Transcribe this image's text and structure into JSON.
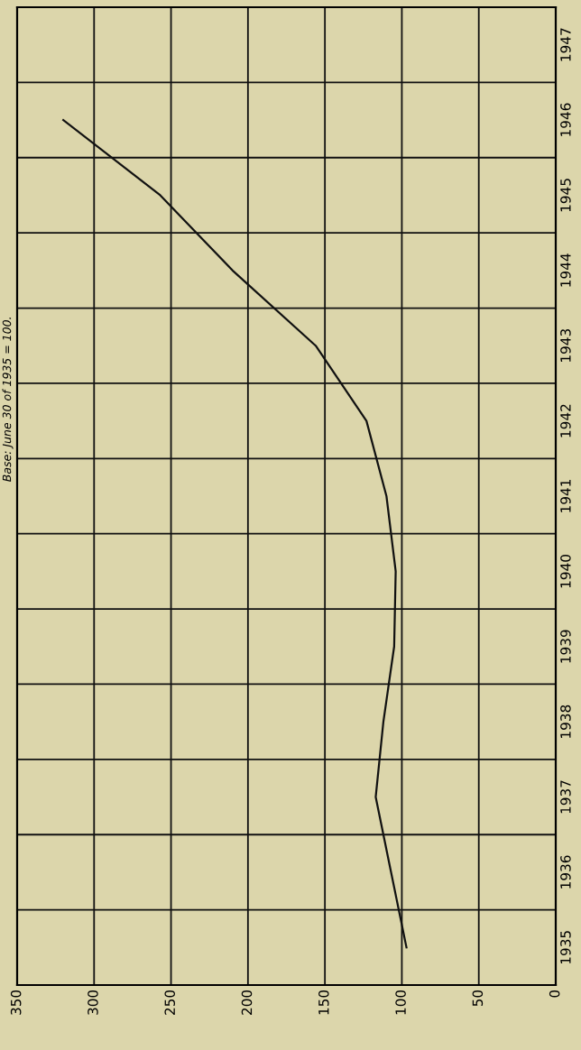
{
  "chart_data": {
    "type": "line",
    "orientation": "horizontal",
    "categories": [
      "1947",
      "1946",
      "1945",
      "1944",
      "1943",
      "1942",
      "1941",
      "1940",
      "1939",
      "1938",
      "1937",
      "1936",
      "1935"
    ],
    "series": [
      {
        "color": "#111111",
        "values": [
          null,
          320,
          257,
          210,
          156,
          123,
          110,
          104,
          105,
          112,
          117,
          107,
          97
        ]
      }
    ],
    "xlim": [
      350,
      0
    ],
    "xticks": [
      350,
      300,
      250,
      200,
      150,
      100,
      50,
      0
    ],
    "grid": true,
    "marker": "none",
    "line_style": "solid",
    "annotations": [
      "Base: June 30 of 1935 = 100."
    ]
  }
}
